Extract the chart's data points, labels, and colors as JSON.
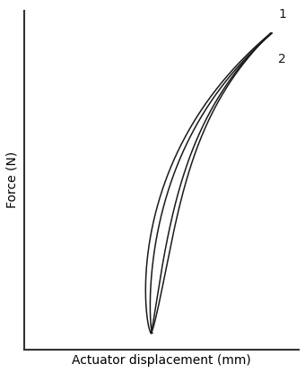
{
  "title": "",
  "xlabel": "Actuator displacement (mm)",
  "ylabel": "Force (N)",
  "background_color": "#ffffff",
  "line_color": "#1a1a1a",
  "label1": "1",
  "label2": "2",
  "xlim": [
    0,
    1.08
  ],
  "ylim": [
    0,
    1.05
  ],
  "figsize": [
    3.4,
    4.16
  ],
  "dpi": 100
}
